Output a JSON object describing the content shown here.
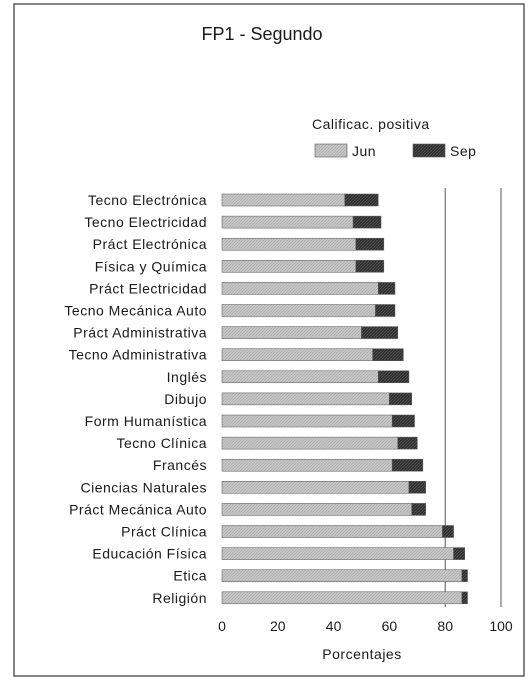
{
  "chart_data": {
    "type": "bar",
    "orientation": "horizontal",
    "stacked": true,
    "title": "FP1 - Segundo",
    "legend_title": "Calificac. positiva",
    "legend_position": "top-right",
    "xlabel": "Porcentajes",
    "ylabel": "",
    "xlim": [
      0,
      100
    ],
    "xticks": [
      "0",
      "20",
      "40",
      "60",
      "80",
      "100"
    ],
    "grid": "vertical lines at 80 and 100",
    "categories": [
      "Tecno Electrónica",
      "Tecno Electricidad",
      "Práct Electrónica",
      "Física y Química",
      "Práct Electricidad",
      "Tecno Mecánica Auto",
      "Práct Administrativa",
      "Tecno Administrativa",
      "Inglés",
      "Dibujo",
      "Form Humanística",
      "Tecno Clínica",
      "Francés",
      "Ciencias Naturales",
      "Práct Mecánica Auto",
      "Práct Clínica",
      "Educación Física",
      "Etica",
      "Religión"
    ],
    "series": [
      {
        "name": "Jun",
        "color": "#c4c4c4",
        "values": [
          44,
          47,
          48,
          48,
          56,
          55,
          50,
          54,
          56,
          60,
          61,
          63,
          61,
          67,
          68,
          79,
          83,
          86,
          86
        ]
      },
      {
        "name": "Sep",
        "color": "#3a3a3a",
        "values": [
          12,
          10,
          10,
          10,
          6,
          7,
          13,
          11,
          11,
          8,
          8,
          7,
          11,
          6,
          5,
          4,
          4,
          2,
          2
        ]
      }
    ]
  }
}
